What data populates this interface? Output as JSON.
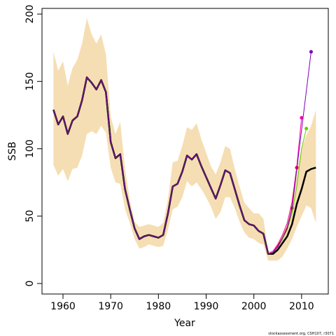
{
  "chart_data": {
    "type": "line",
    "xlabel": "Year",
    "ylabel": "SSB",
    "footer": "stockassessment.org, CSH107, r3071",
    "x": [
      1958,
      1959,
      1960,
      1961,
      1962,
      1963,
      1964,
      1965,
      1966,
      1967,
      1968,
      1969,
      1970,
      1971,
      1972,
      1973,
      1974,
      1975,
      1976,
      1977,
      1978,
      1979,
      1980,
      1981,
      1982,
      1983,
      1984,
      1985,
      1986,
      1987,
      1988,
      1989,
      1990,
      1991,
      1992,
      1993,
      1994,
      1995,
      1996,
      1997,
      1998,
      1999,
      2000,
      2001,
      2002,
      2003,
      2004,
      2005,
      2006,
      2007,
      2008,
      2009,
      2010,
      2011,
      2012,
      2013
    ],
    "xlim": [
      1955.6,
      2015.6
    ],
    "ylim": [
      -7.8,
      204.2
    ],
    "xticks": [
      1960,
      1970,
      1980,
      1990,
      2000,
      2010
    ],
    "yticks": [
      0,
      50,
      100,
      150,
      200
    ],
    "band": {
      "color": "#f5deb3",
      "upper": [
        172,
        158,
        165,
        147,
        160,
        166,
        178,
        197,
        185,
        178,
        185,
        170,
        124,
        111,
        120,
        85,
        62,
        46,
        42,
        43,
        44,
        43,
        42,
        45,
        63,
        90,
        91,
        102,
        116,
        114,
        119,
        107,
        97,
        87,
        81,
        90,
        102,
        100,
        85,
        72,
        60,
        56,
        52,
        52,
        48,
        24,
        24,
        30,
        37,
        45,
        65,
        85,
        100,
        110,
        117,
        129
      ],
      "lower": [
        88,
        80,
        85,
        76,
        85,
        86,
        95,
        111,
        113,
        111,
        117,
        112,
        86,
        75,
        74,
        55,
        45,
        33,
        26,
        27,
        29,
        28,
        27,
        28,
        40,
        55,
        57,
        64,
        76,
        72,
        75,
        70,
        64,
        57,
        48,
        53,
        64,
        64,
        56,
        46,
        38,
        34,
        33,
        30,
        29,
        17,
        17,
        17,
        20,
        26,
        33,
        42,
        50,
        58,
        56,
        45
      ]
    },
    "series": [
      {
        "color": "#000000",
        "width": 2.5,
        "end_marker": false,
        "values": [
          129,
          118,
          124,
          111,
          121,
          124,
          136,
          153,
          149,
          144,
          151,
          142,
          105,
          93,
          96,
          70,
          55,
          41,
          33,
          35,
          36,
          35,
          34,
          36,
          52,
          72,
          74,
          83,
          95,
          92,
          96,
          87,
          79,
          71,
          63,
          73,
          84,
          82,
          70,
          58,
          47,
          44,
          43,
          39,
          37,
          22,
          22,
          25,
          30,
          35,
          44,
          59,
          70,
          83,
          85,
          86
        ]
      },
      {
        "color": "#8b1a4a",
        "width": 1,
        "end_marker": true,
        "values": [
          129,
          118,
          124,
          111,
          121,
          124,
          136,
          153,
          149,
          144,
          151,
          142,
          105,
          93,
          96,
          70,
          55,
          41,
          33,
          35,
          36,
          35,
          34,
          36,
          52,
          72,
          74,
          83,
          95,
          92,
          96,
          87,
          79,
          71,
          63,
          73,
          84,
          82,
          70,
          58,
          47,
          44,
          43,
          39,
          37,
          22,
          23,
          27,
          33,
          40,
          56,
          null,
          null,
          null,
          null,
          null
        ]
      },
      {
        "color": "#e0001a",
        "width": 1,
        "end_marker": true,
        "values": [
          129,
          118,
          124,
          111,
          121,
          124,
          136,
          153,
          149,
          144,
          151,
          142,
          105,
          93,
          96,
          70,
          55,
          41,
          33,
          35,
          36,
          35,
          34,
          36,
          52,
          72,
          74,
          83,
          95,
          92,
          96,
          87,
          79,
          71,
          63,
          73,
          84,
          82,
          70,
          58,
          47,
          44,
          43,
          39,
          37,
          22,
          23,
          28,
          34,
          42,
          55,
          86,
          null,
          null,
          null,
          null
        ]
      },
      {
        "color": "#ff00aa",
        "width": 1,
        "end_marker": true,
        "values": [
          129,
          118,
          124,
          111,
          121,
          124,
          136,
          153,
          149,
          144,
          151,
          142,
          105,
          93,
          96,
          70,
          55,
          41,
          33,
          35,
          36,
          35,
          34,
          36,
          52,
          72,
          74,
          83,
          95,
          92,
          96,
          87,
          79,
          71,
          63,
          73,
          84,
          82,
          70,
          58,
          47,
          44,
          43,
          39,
          37,
          22,
          24,
          29,
          36,
          45,
          60,
          87,
          123,
          null,
          null,
          null
        ]
      },
      {
        "color": "#66cc00",
        "width": 1,
        "end_marker": true,
        "values": [
          129,
          118,
          124,
          111,
          121,
          124,
          136,
          153,
          149,
          144,
          151,
          142,
          105,
          93,
          96,
          70,
          55,
          41,
          33,
          35,
          36,
          35,
          34,
          36,
          52,
          72,
          74,
          83,
          95,
          92,
          96,
          87,
          79,
          71,
          63,
          73,
          84,
          82,
          70,
          58,
          47,
          44,
          43,
          39,
          37,
          22,
          23,
          27,
          33,
          40,
          52,
          72,
          100,
          115,
          null,
          null
        ]
      },
      {
        "color": "#7a00b8",
        "width": 1,
        "end_marker": true,
        "values": [
          129,
          118,
          124,
          111,
          121,
          124,
          136,
          153,
          149,
          144,
          151,
          142,
          105,
          93,
          96,
          70,
          55,
          41,
          33,
          35,
          36,
          35,
          34,
          36,
          52,
          72,
          74,
          83,
          95,
          92,
          96,
          87,
          79,
          71,
          63,
          73,
          84,
          82,
          70,
          58,
          47,
          44,
          43,
          39,
          37,
          22,
          23,
          27,
          34,
          41,
          56,
          85,
          114,
          143,
          172,
          null
        ]
      }
    ]
  }
}
